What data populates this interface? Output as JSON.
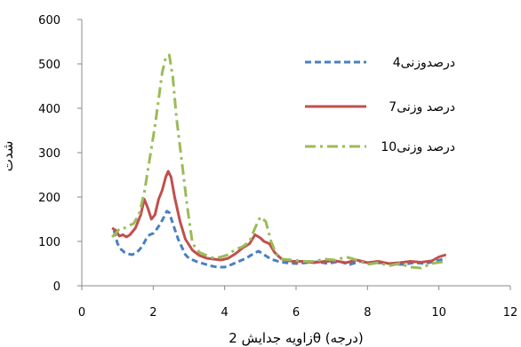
{
  "chart_data": {
    "type": "line",
    "title": "",
    "xlabel": "زاویه جدایش 2θ (درجه)",
    "ylabel": "شدت",
    "xlim": [
      0,
      12
    ],
    "ylim": [
      0,
      600
    ],
    "xticks": [
      0,
      2,
      4,
      6,
      8,
      10,
      12
    ],
    "yticks": [
      0,
      100,
      200,
      300,
      400,
      500,
      600
    ],
    "grid": false,
    "legend_position": "top-right",
    "series": [
      {
        "name": "4درصدوزنی",
        "color": "#4a7fc1",
        "dash": "dashed",
        "points": [
          [
            0.9,
            125
          ],
          [
            1.0,
            95
          ],
          [
            1.1,
            82
          ],
          [
            1.2,
            75
          ],
          [
            1.3,
            72
          ],
          [
            1.4,
            70
          ],
          [
            1.5,
            73
          ],
          [
            1.6,
            80
          ],
          [
            1.7,
            90
          ],
          [
            1.8,
            105
          ],
          [
            1.9,
            115
          ],
          [
            2.0,
            118
          ],
          [
            2.1,
            128
          ],
          [
            2.2,
            140
          ],
          [
            2.3,
            155
          ],
          [
            2.38,
            168
          ],
          [
            2.45,
            165
          ],
          [
            2.55,
            140
          ],
          [
            2.7,
            105
          ],
          [
            2.9,
            70
          ],
          [
            3.0,
            62
          ],
          [
            3.2,
            55
          ],
          [
            3.4,
            50
          ],
          [
            3.6,
            45
          ],
          [
            3.8,
            42
          ],
          [
            4.0,
            42
          ],
          [
            4.2,
            48
          ],
          [
            4.4,
            55
          ],
          [
            4.6,
            62
          ],
          [
            4.8,
            72
          ],
          [
            4.95,
            78
          ],
          [
            5.1,
            70
          ],
          [
            5.3,
            60
          ],
          [
            5.5,
            55
          ],
          [
            5.7,
            52
          ],
          [
            6.0,
            50
          ],
          [
            6.3,
            52
          ],
          [
            6.6,
            54
          ],
          [
            6.9,
            50
          ],
          [
            7.2,
            55
          ],
          [
            7.5,
            48
          ],
          [
            7.8,
            55
          ],
          [
            8.1,
            50
          ],
          [
            8.4,
            52
          ],
          [
            8.7,
            49
          ],
          [
            9.0,
            48
          ],
          [
            9.3,
            52
          ],
          [
            9.6,
            50
          ],
          [
            9.9,
            55
          ],
          [
            10.2,
            62
          ]
        ]
      },
      {
        "name": "7درصد وزنی",
        "color": "#c0504d",
        "dash": "solid",
        "points": [
          [
            0.85,
            130
          ],
          [
            0.95,
            125
          ],
          [
            1.05,
            112
          ],
          [
            1.15,
            115
          ],
          [
            1.25,
            110
          ],
          [
            1.35,
            115
          ],
          [
            1.5,
            130
          ],
          [
            1.65,
            160
          ],
          [
            1.75,
            195
          ],
          [
            1.85,
            175
          ],
          [
            1.95,
            150
          ],
          [
            2.05,
            160
          ],
          [
            2.15,
            195
          ],
          [
            2.25,
            215
          ],
          [
            2.35,
            245
          ],
          [
            2.42,
            258
          ],
          [
            2.5,
            245
          ],
          [
            2.6,
            200
          ],
          [
            2.75,
            145
          ],
          [
            2.9,
            105
          ],
          [
            3.1,
            80
          ],
          [
            3.3,
            68
          ],
          [
            3.5,
            62
          ],
          [
            3.7,
            60
          ],
          [
            3.9,
            58
          ],
          [
            4.1,
            62
          ],
          [
            4.3,
            72
          ],
          [
            4.5,
            85
          ],
          [
            4.7,
            95
          ],
          [
            4.85,
            115
          ],
          [
            5.0,
            108
          ],
          [
            5.1,
            100
          ],
          [
            5.25,
            95
          ],
          [
            5.4,
            75
          ],
          [
            5.6,
            60
          ],
          [
            5.9,
            55
          ],
          [
            6.2,
            55
          ],
          [
            6.5,
            52
          ],
          [
            6.8,
            55
          ],
          [
            7.1,
            56
          ],
          [
            7.4,
            52
          ],
          [
            7.7,
            58
          ],
          [
            8.0,
            52
          ],
          [
            8.3,
            55
          ],
          [
            8.6,
            50
          ],
          [
            8.9,
            52
          ],
          [
            9.2,
            55
          ],
          [
            9.5,
            53
          ],
          [
            9.8,
            56
          ],
          [
            10.0,
            65
          ],
          [
            10.2,
            70
          ]
        ]
      },
      {
        "name": "10درصد وزنی",
        "color": "#9bbb59",
        "dash": "dashdot",
        "points": [
          [
            0.85,
            110
          ],
          [
            0.95,
            118
          ],
          [
            1.05,
            128
          ],
          [
            1.15,
            128
          ],
          [
            1.3,
            135
          ],
          [
            1.45,
            140
          ],
          [
            1.6,
            160
          ],
          [
            1.75,
            210
          ],
          [
            1.85,
            260
          ],
          [
            1.95,
            310
          ],
          [
            2.05,
            360
          ],
          [
            2.15,
            420
          ],
          [
            2.25,
            480
          ],
          [
            2.35,
            515
          ],
          [
            2.45,
            520
          ],
          [
            2.55,
            470
          ],
          [
            2.65,
            380
          ],
          [
            2.8,
            280
          ],
          [
            2.95,
            180
          ],
          [
            3.1,
            95
          ],
          [
            3.3,
            75
          ],
          [
            3.5,
            68
          ],
          [
            3.7,
            62
          ],
          [
            3.9,
            65
          ],
          [
            4.1,
            70
          ],
          [
            4.3,
            82
          ],
          [
            4.5,
            88
          ],
          [
            4.7,
            100
          ],
          [
            4.85,
            130
          ],
          [
            5.0,
            155
          ],
          [
            5.15,
            145
          ],
          [
            5.3,
            100
          ],
          [
            5.45,
            70
          ],
          [
            5.6,
            60
          ],
          [
            5.9,
            58
          ],
          [
            6.2,
            55
          ],
          [
            6.5,
            55
          ],
          [
            6.8,
            60
          ],
          [
            7.1,
            58
          ],
          [
            7.4,
            65
          ],
          [
            7.7,
            58
          ],
          [
            8.0,
            48
          ],
          [
            8.3,
            52
          ],
          [
            8.6,
            45
          ],
          [
            8.9,
            50
          ],
          [
            9.2,
            42
          ],
          [
            9.5,
            40
          ],
          [
            9.8,
            50
          ],
          [
            10.2,
            55
          ]
        ]
      }
    ]
  }
}
